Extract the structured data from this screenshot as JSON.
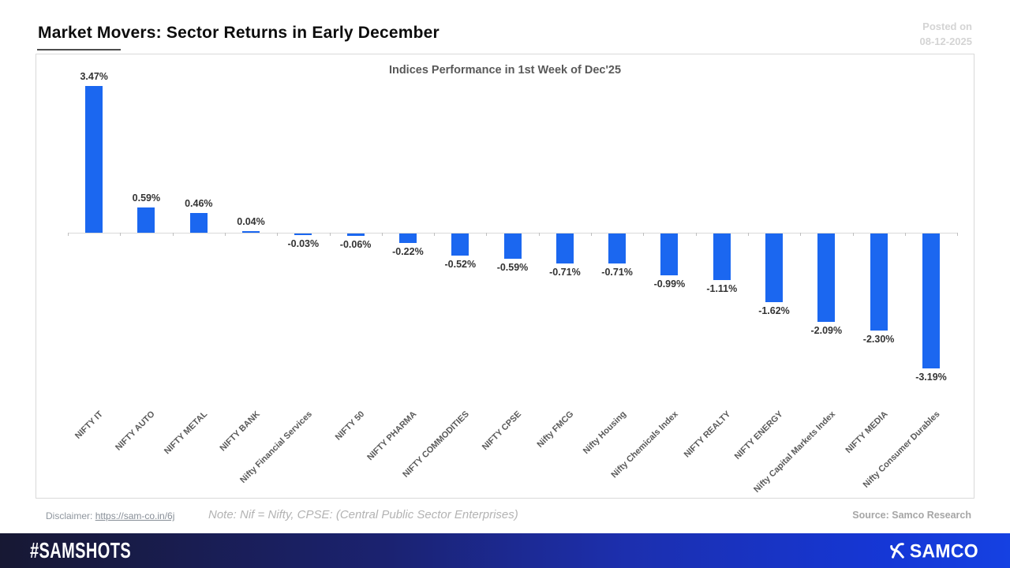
{
  "header": {
    "title": "Market Movers: Sector Returns in Early December",
    "posted_on_label": "Posted on",
    "posted_on_date": "08-12-2025"
  },
  "chart_data": {
    "type": "bar",
    "title": "Indices Performance in 1st Week of Dec'25",
    "categories": [
      "NIFTY IT",
      "NIFTY AUTO",
      "NIFTY METAL",
      "NIFTY BANK",
      "Nifty Financial Services",
      "NIFTY 50",
      "NIFTY PHARMA",
      "NIFTY COMMODITIES",
      "NIFTY CPSE",
      "Nifty FMCG",
      "Nifty Housing",
      "Nifty Chemicals Index",
      "NIFTY REALTY",
      "NIFTY ENERGY",
      "Nifty Capital Markets Index",
      "NIFTY MEDIA",
      "Nifty Consumer Durables"
    ],
    "values": [
      3.47,
      0.59,
      0.46,
      0.04,
      -0.03,
      -0.06,
      -0.22,
      -0.52,
      -0.59,
      -0.71,
      -0.71,
      -0.99,
      -1.11,
      -1.62,
      -2.09,
      -2.3,
      -3.19
    ],
    "value_labels": [
      "3.47%",
      "0.59%",
      "0.46%",
      "0.04%",
      "-0.03%",
      "-0.06%",
      "-0.22%",
      "-0.52%",
      "-0.59%",
      "-0.71%",
      "-0.71%",
      "-0.99%",
      "-1.11%",
      "-1.62%",
      "-2.09%",
      "-2.30%",
      "-3.19%"
    ],
    "xlabel": "",
    "ylabel": "",
    "ylim": [
      -3.6,
      3.7
    ],
    "grid": false,
    "legend": false,
    "bar_color": "#1b67f0",
    "axis_color": "#d9d9d9",
    "value_label_format": "percent",
    "category_label_rotation_deg": -45
  },
  "footer_meta": {
    "disclaimer_label": "Disclaimer:",
    "disclaimer_link": "https://sam-co.in/6j",
    "note": "Note: Nif = Nifty, CPSE: (Central Public Sector Enterprises)",
    "source": "Source: Samco Research"
  },
  "brand_bar": {
    "hashtag": "#SAMSHOTS",
    "brand": "SAMCO"
  }
}
